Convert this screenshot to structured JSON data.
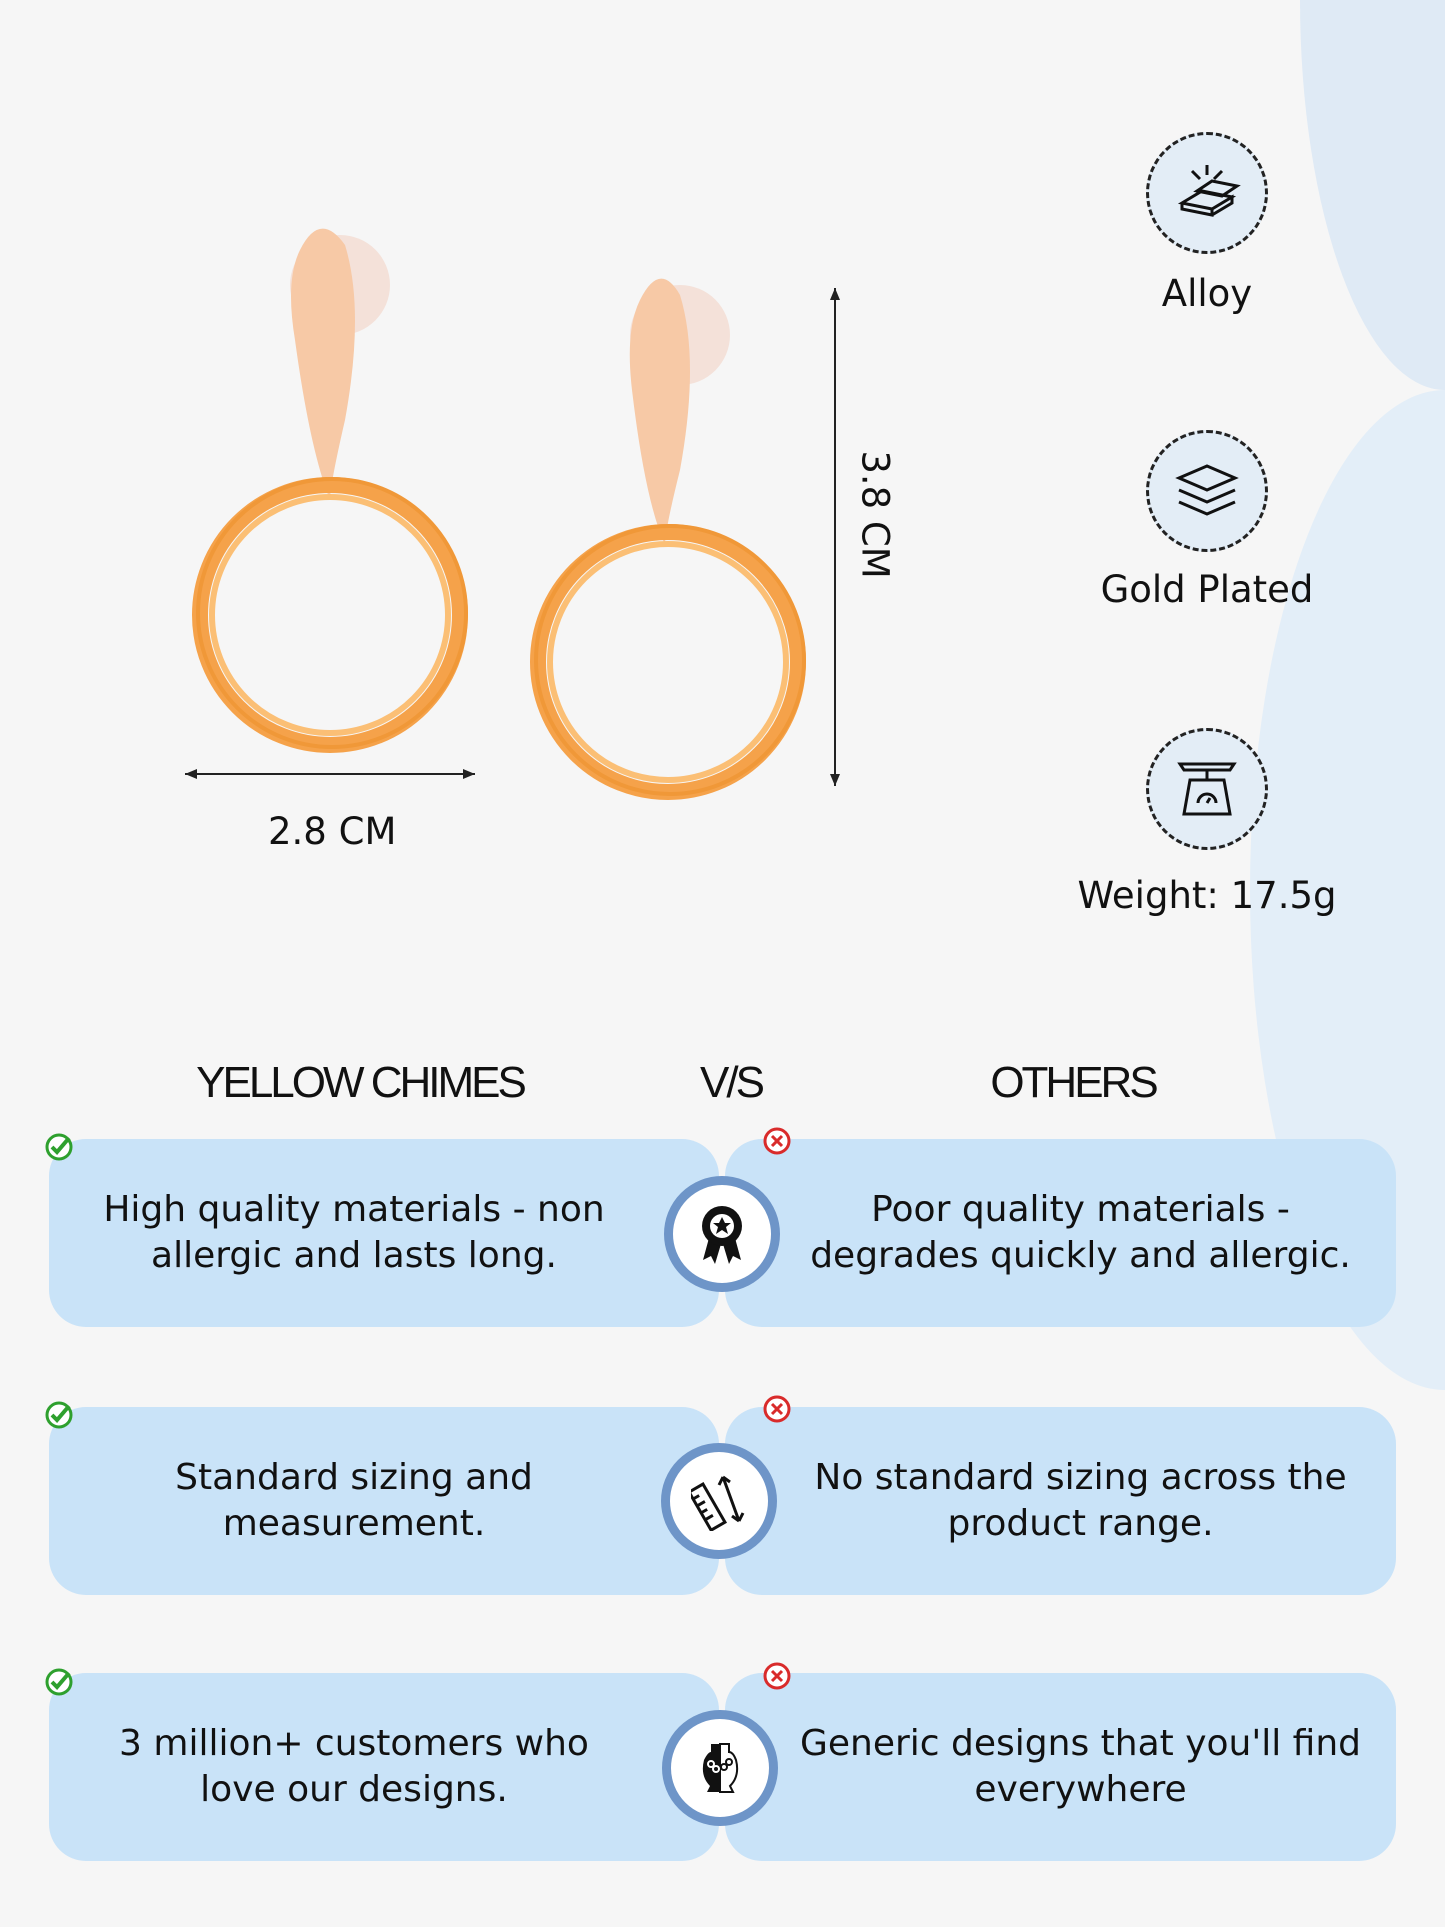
{
  "dimensions": {
    "width_label": "2.8 CM",
    "height_label": "3.8 CM"
  },
  "specs": [
    {
      "icon": "gold-bars-icon",
      "label": "Alloy"
    },
    {
      "icon": "layers-icon",
      "label": "Gold Plated"
    },
    {
      "icon": "weighing-scale-icon",
      "label": "Weight: 17.5g"
    }
  ],
  "comparison": {
    "left_title": "YELLOW CHIMES",
    "vs": "V/S",
    "right_title": "OTHERS",
    "rows": [
      {
        "icon": "quality-badge-icon",
        "ours": "High quality materials - non allergic and lasts long.",
        "others": "Poor quality materials - degrades quickly and allergic."
      },
      {
        "icon": "ruler-measure-icon",
        "ours": "Standard sizing and measurement.",
        "others": "No standard sizing across the product range."
      },
      {
        "icon": "jewelry-bust-icon",
        "ours": "3 million+ customers who love our designs.",
        "others": "Generic designs that you'll find everywhere"
      }
    ]
  },
  "colors": {
    "card": "#c9e3f8",
    "ring": "#6e95c8",
    "check": "#2ea02e",
    "cross": "#d92b2b",
    "gold": "#f5a24a"
  }
}
